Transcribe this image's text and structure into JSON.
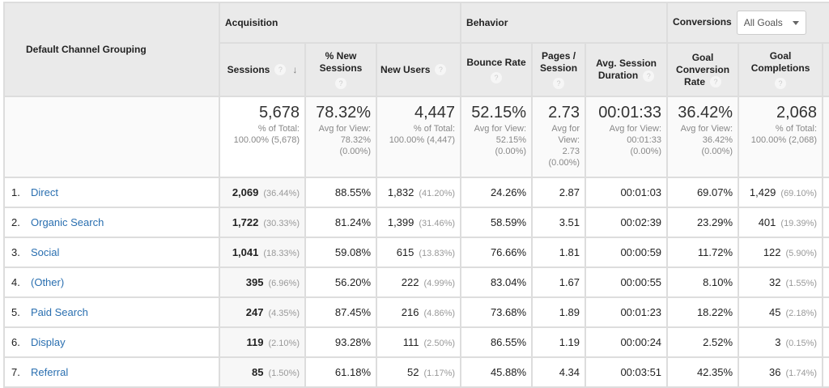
{
  "groups": {
    "dimension": "Default Channel Grouping",
    "acquisition": "Acquisition",
    "behavior": "Behavior",
    "conversions": "Conversions",
    "goal_select": "All Goals"
  },
  "columns": [
    "Sessions",
    "% New Sessions",
    "New Users",
    "Bounce Rate",
    "Pages / Session",
    "Avg. Session Duration",
    "Goal Conversion Rate",
    "Goal Completions"
  ],
  "totals": [
    {
      "value": "5,678",
      "l1": "% of Total:",
      "l2": "100.00% (5,678)"
    },
    {
      "value": "78.32%",
      "l1": "Avg for View:",
      "l2": "78.32%",
      "l3": "(0.00%)"
    },
    {
      "value": "4,447",
      "l1": "% of Total:",
      "l2": "100.00% (4,447)"
    },
    {
      "value": "52.15%",
      "l1": "Avg for View:",
      "l2": "52.15%",
      "l3": "(0.00%)"
    },
    {
      "value": "2.73",
      "l1": "Avg for",
      "l2": "View:",
      "l3": "2.73",
      "l4": "(0.00%)"
    },
    {
      "value": "00:01:33",
      "l1": "Avg for View:",
      "l2": "00:01:33",
      "l3": "(0.00%)"
    },
    {
      "value": "36.42%",
      "l1": "Avg for View:",
      "l2": "36.42%",
      "l3": "(0.00%)"
    },
    {
      "value": "2,068",
      "l1": "% of Total:",
      "l2": "100.00% (2,068)"
    }
  ],
  "rows": [
    {
      "i": "1.",
      "name": "Direct",
      "s": "2,069",
      "sp": "(36.44%)",
      "ns": "88.55%",
      "nu": "1,832",
      "nup": "(41.20%)",
      "br": "24.26%",
      "ps": "2.87",
      "d": "00:01:03",
      "cr": "69.07%",
      "gc": "1,429",
      "gcp": "(69.10%)"
    },
    {
      "i": "2.",
      "name": "Organic Search",
      "s": "1,722",
      "sp": "(30.33%)",
      "ns": "81.24%",
      "nu": "1,399",
      "nup": "(31.46%)",
      "br": "58.59%",
      "ps": "3.51",
      "d": "00:02:39",
      "cr": "23.29%",
      "gc": "401",
      "gcp": "(19.39%)"
    },
    {
      "i": "3.",
      "name": "Social",
      "s": "1,041",
      "sp": "(18.33%)",
      "ns": "59.08%",
      "nu": "615",
      "nup": "(13.83%)",
      "br": "76.66%",
      "ps": "1.81",
      "d": "00:00:59",
      "cr": "11.72%",
      "gc": "122",
      "gcp": "(5.90%)"
    },
    {
      "i": "4.",
      "name": "(Other)",
      "s": "395",
      "sp": "(6.96%)",
      "ns": "56.20%",
      "nu": "222",
      "nup": "(4.99%)",
      "br": "83.04%",
      "ps": "1.67",
      "d": "00:00:55",
      "cr": "8.10%",
      "gc": "32",
      "gcp": "(1.55%)"
    },
    {
      "i": "5.",
      "name": "Paid Search",
      "s": "247",
      "sp": "(4.35%)",
      "ns": "87.45%",
      "nu": "216",
      "nup": "(4.86%)",
      "br": "73.68%",
      "ps": "1.89",
      "d": "00:01:23",
      "cr": "18.22%",
      "gc": "45",
      "gcp": "(2.18%)"
    },
    {
      "i": "6.",
      "name": "Display",
      "s": "119",
      "sp": "(2.10%)",
      "ns": "93.28%",
      "nu": "111",
      "nup": "(2.50%)",
      "br": "86.55%",
      "ps": "1.19",
      "d": "00:00:24",
      "cr": "2.52%",
      "gc": "3",
      "gcp": "(0.15%)"
    },
    {
      "i": "7.",
      "name": "Referral",
      "s": "85",
      "sp": "(1.50%)",
      "ns": "61.18%",
      "nu": "52",
      "nup": "(1.17%)",
      "br": "45.88%",
      "ps": "4.34",
      "d": "00:03:51",
      "cr": "42.35%",
      "gc": "36",
      "gcp": "(1.74%)"
    }
  ]
}
